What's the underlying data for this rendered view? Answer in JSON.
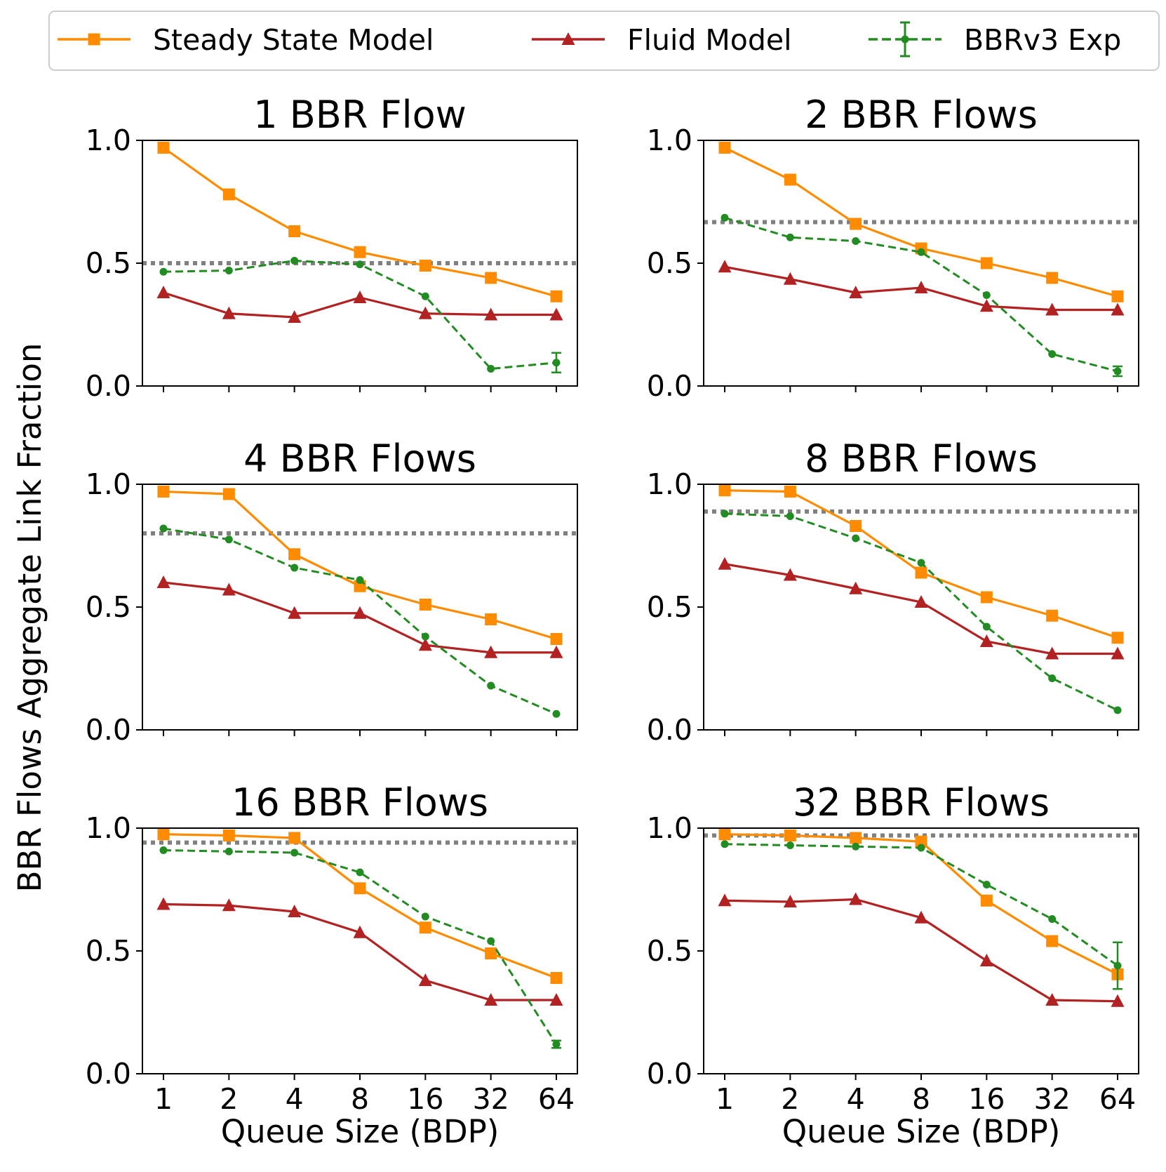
{
  "chart_data": {
    "type": "line",
    "ylabel": "BBR Flows Aggregate Link Fraction",
    "xlabel": "Queue Size (BDP)",
    "categories": [
      "1",
      "2",
      "4",
      "8",
      "16",
      "32",
      "64"
    ],
    "yticks": [
      "0.0",
      "0.5",
      "1.0"
    ],
    "ylim": [
      0,
      1
    ],
    "legend": [
      {
        "name": "Steady State Model",
        "color": "#ff8c00",
        "marker": "square",
        "style": "solid"
      },
      {
        "name": "Fluid Model",
        "color": "#b22222",
        "marker": "triangle",
        "style": "solid"
      },
      {
        "name": "BBRv3 Exp",
        "color": "#228b22",
        "marker": "circle",
        "style": "dashed",
        "errorbars": true
      }
    ],
    "fair_share_line_color": "#808080",
    "panels": [
      {
        "title": "1 BBR Flow",
        "fair_share": 0.5,
        "series": [
          {
            "name": "Steady State Model",
            "values": [
              0.97,
              0.78,
              0.63,
              0.545,
              0.49,
              0.44,
              0.365
            ]
          },
          {
            "name": "Fluid Model",
            "values": [
              0.38,
              0.295,
              0.28,
              0.36,
              0.295,
              0.29,
              0.29
            ]
          },
          {
            "name": "BBRv3 Exp",
            "values": [
              0.465,
              0.47,
              0.51,
              0.495,
              0.365,
              0.07,
              0.095
            ],
            "errors": [
              0.005,
              0.005,
              0.005,
              0.005,
              0.008,
              0.005,
              0.04
            ]
          }
        ]
      },
      {
        "title": "2 BBR Flows",
        "fair_share": 0.667,
        "series": [
          {
            "name": "Steady State Model",
            "values": [
              0.97,
              0.84,
              0.66,
              0.56,
              0.5,
              0.44,
              0.365
            ]
          },
          {
            "name": "Fluid Model",
            "values": [
              0.485,
              0.435,
              0.38,
              0.4,
              0.325,
              0.31,
              0.31
            ]
          },
          {
            "name": "BBRv3 Exp",
            "values": [
              0.685,
              0.605,
              0.59,
              0.545,
              0.37,
              0.13,
              0.06
            ],
            "errors": [
              0.005,
              0.005,
              0.005,
              0.005,
              0.008,
              0.008,
              0.02
            ]
          }
        ]
      },
      {
        "title": "4 BBR Flows",
        "fair_share": 0.8,
        "series": [
          {
            "name": "Steady State Model",
            "values": [
              0.97,
              0.96,
              0.715,
              0.585,
              0.51,
              0.45,
              0.37
            ]
          },
          {
            "name": "Fluid Model",
            "values": [
              0.6,
              0.57,
              0.475,
              0.475,
              0.345,
              0.315,
              0.315
            ]
          },
          {
            "name": "BBRv3 Exp",
            "values": [
              0.82,
              0.775,
              0.66,
              0.61,
              0.38,
              0.18,
              0.065
            ],
            "errors": [
              0.005,
              0.005,
              0.005,
              0.005,
              0.008,
              0.008,
              0.012
            ]
          }
        ]
      },
      {
        "title": "8 BBR Flows",
        "fair_share": 0.889,
        "series": [
          {
            "name": "Steady State Model",
            "values": [
              0.975,
              0.97,
              0.83,
              0.64,
              0.54,
              0.465,
              0.375
            ]
          },
          {
            "name": "Fluid Model",
            "values": [
              0.675,
              0.63,
              0.575,
              0.52,
              0.36,
              0.31,
              0.31
            ]
          },
          {
            "name": "BBRv3 Exp",
            "values": [
              0.88,
              0.87,
              0.78,
              0.68,
              0.42,
              0.21,
              0.08
            ],
            "errors": [
              0.005,
              0.005,
              0.005,
              0.005,
              0.008,
              0.008,
              0.012
            ]
          }
        ]
      },
      {
        "title": "16 BBR Flows",
        "fair_share": 0.941,
        "series": [
          {
            "name": "Steady State Model",
            "values": [
              0.975,
              0.97,
              0.96,
              0.755,
              0.595,
              0.49,
              0.39
            ]
          },
          {
            "name": "Fluid Model",
            "values": [
              0.69,
              0.685,
              0.66,
              0.575,
              0.38,
              0.3,
              0.3
            ]
          },
          {
            "name": "BBRv3 Exp",
            "values": [
              0.91,
              0.905,
              0.9,
              0.82,
              0.64,
              0.54,
              0.12
            ],
            "errors": [
              0.005,
              0.005,
              0.005,
              0.005,
              0.008,
              0.008,
              0.015
            ]
          }
        ]
      },
      {
        "title": "32 BBR Flows",
        "fair_share": 0.97,
        "series": [
          {
            "name": "Steady State Model",
            "values": [
              0.975,
              0.97,
              0.96,
              0.945,
              0.705,
              0.54,
              0.405
            ]
          },
          {
            "name": "Fluid Model",
            "values": [
              0.705,
              0.7,
              0.71,
              0.635,
              0.46,
              0.3,
              0.295
            ]
          },
          {
            "name": "BBRv3 Exp",
            "values": [
              0.935,
              0.93,
              0.925,
              0.92,
              0.77,
              0.63,
              0.44
            ],
            "errors": [
              0.005,
              0.005,
              0.005,
              0.005,
              0.008,
              0.008,
              0.095
            ]
          }
        ]
      }
    ]
  }
}
